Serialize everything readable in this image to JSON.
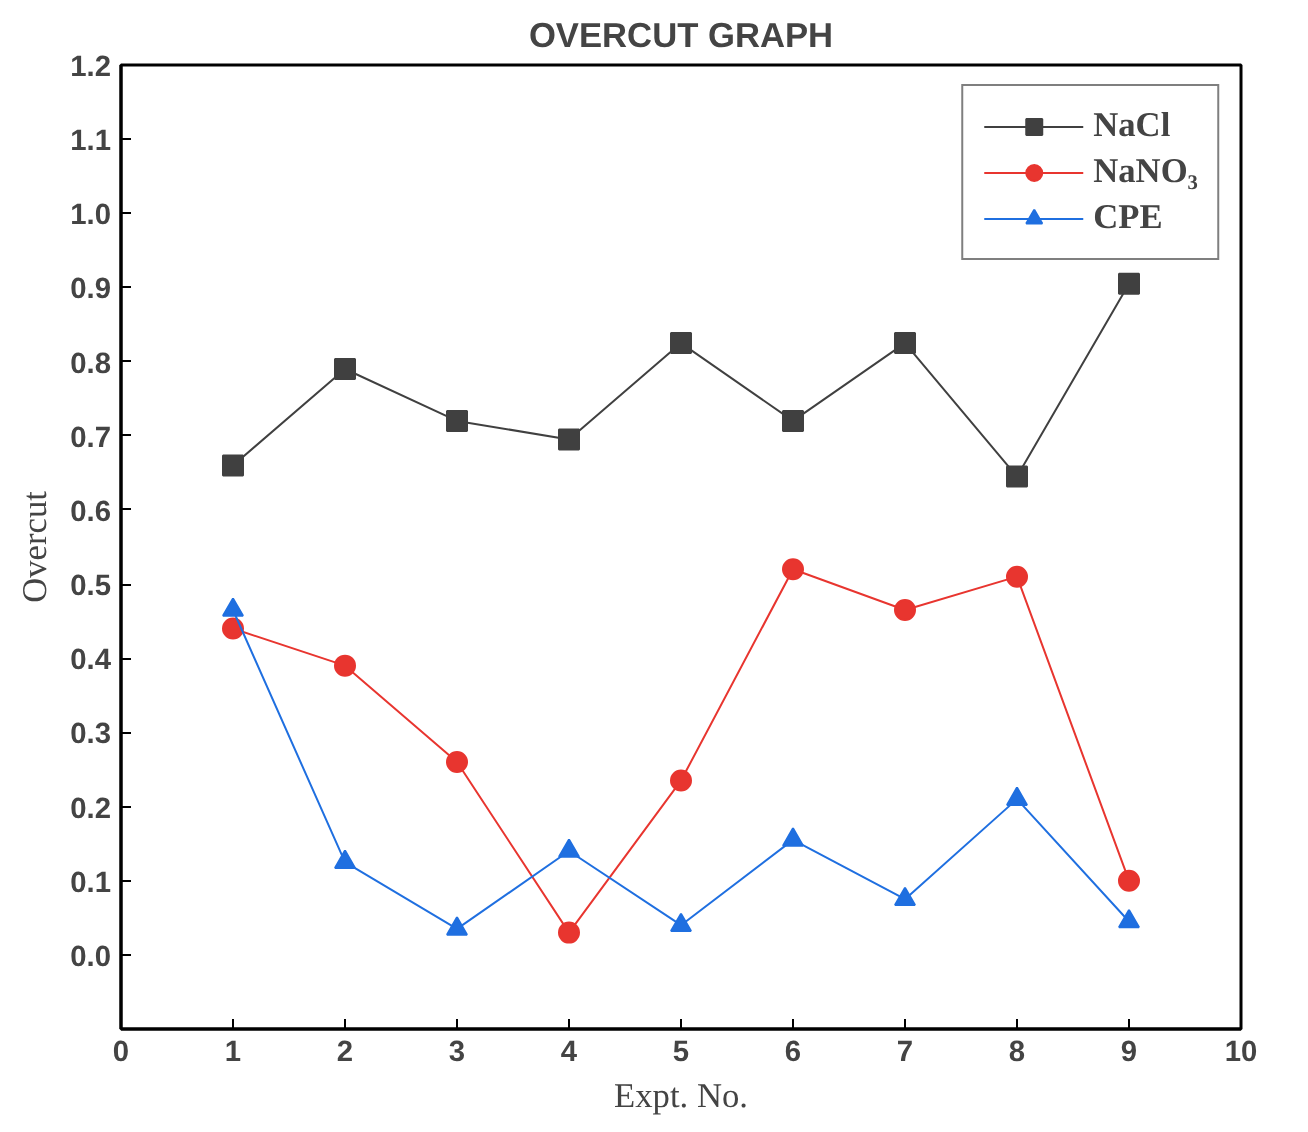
{
  "chart_data": {
    "type": "line",
    "title": "OVERCUT GRAPH",
    "xlabel": "Expt. No.",
    "ylabel": "Overcut",
    "x": [
      1,
      2,
      3,
      4,
      5,
      6,
      7,
      8,
      9
    ],
    "series": [
      {
        "name": "NaCl",
        "color": "#404040",
        "marker": "square",
        "values": [
          0.66,
          0.79,
          0.72,
          0.695,
          0.825,
          0.72,
          0.825,
          0.645,
          0.905
        ]
      },
      {
        "name": "NaNO₃",
        "color": "#e8352f",
        "marker": "circle",
        "values": [
          0.44,
          0.39,
          0.26,
          0.03,
          0.235,
          0.52,
          0.465,
          0.51,
          0.1
        ]
      },
      {
        "name": "CPE",
        "color": "#1f6fe0",
        "marker": "triangle",
        "values": [
          0.465,
          0.125,
          0.035,
          0.14,
          0.04,
          0.155,
          0.075,
          0.21,
          0.045
        ]
      }
    ],
    "xlim": [
      0,
      10
    ],
    "xticks": [
      0,
      1,
      2,
      3,
      4,
      5,
      6,
      7,
      8,
      9,
      10
    ],
    "ylim": [
      -0.1,
      1.2
    ],
    "yticks": [
      {
        "value": 0,
        "label": "0.0"
      },
      0.1,
      0.2,
      0.3,
      0.4,
      0.5,
      0.6,
      0.7,
      0.8,
      0.9,
      {
        "value": 1,
        "label": "1.0"
      },
      1.1,
      1.2
    ],
    "grid": false,
    "legend": "top right",
    "line_style": "solid"
  }
}
